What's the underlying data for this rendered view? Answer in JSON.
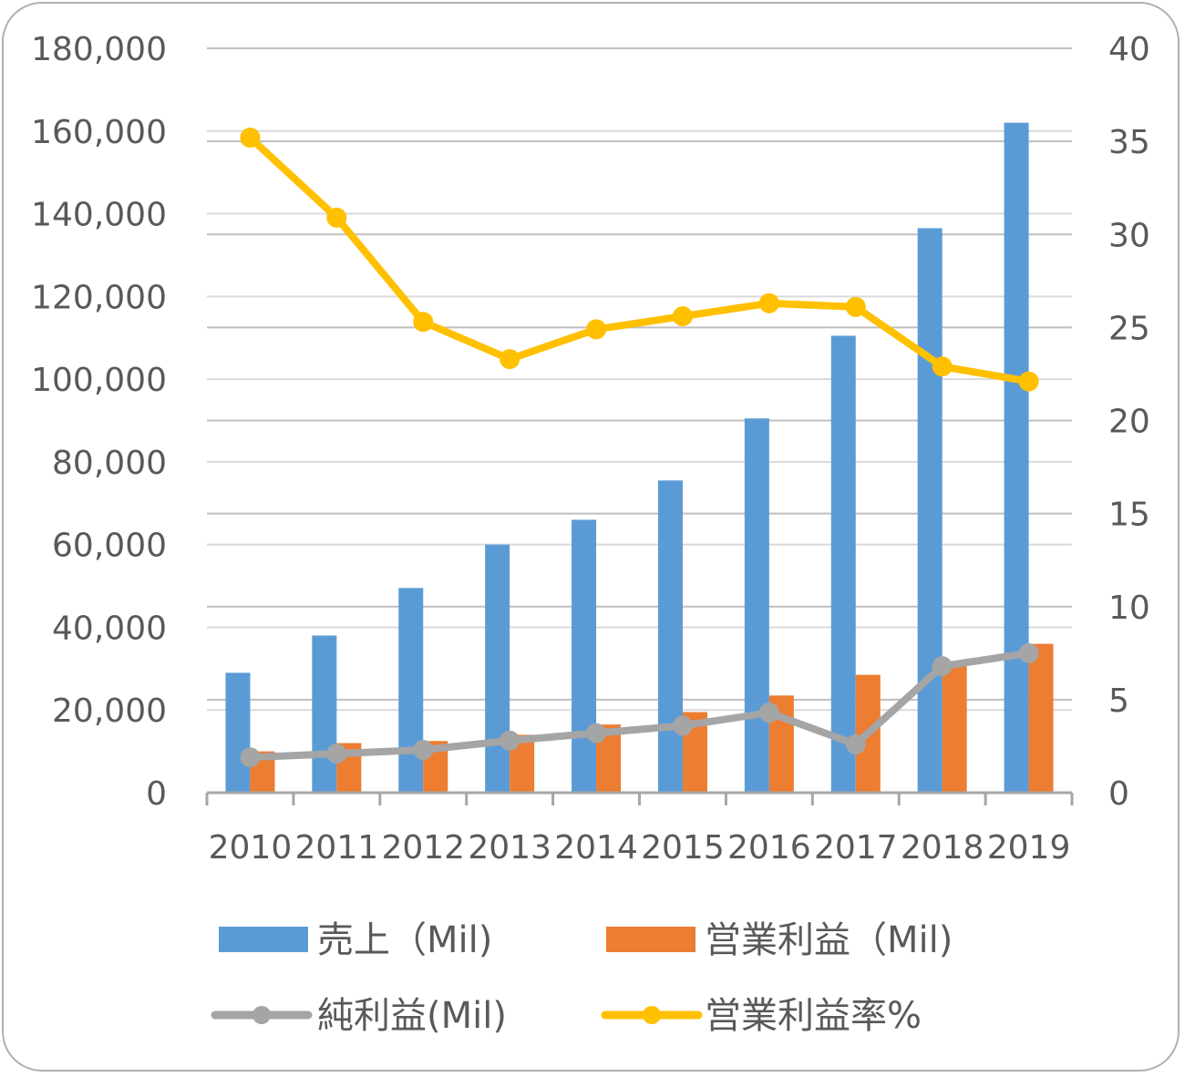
{
  "chart_data": {
    "type": "bar",
    "categories": [
      "2010",
      "2011",
      "2012",
      "2013",
      "2014",
      "2015",
      "2016",
      "2017",
      "2018",
      "2019"
    ],
    "series": [
      {
        "name": "売上（Mil)",
        "kind": "bar",
        "axis": "left",
        "color": "#5b9bd5",
        "values": [
          29000,
          38000,
          49500,
          60000,
          66000,
          75500,
          90500,
          110500,
          136500,
          162000
        ]
      },
      {
        "name": "営業利益（Mil)",
        "kind": "bar",
        "axis": "left",
        "color": "#ed7d31",
        "values": [
          10000,
          12000,
          12500,
          14000,
          16500,
          19500,
          23500,
          28500,
          31500,
          36000
        ]
      },
      {
        "name": "純利益(Mil)",
        "kind": "line",
        "axis": "right",
        "color": "#a5a5a5",
        "values": [
          1.9,
          2.1,
          2.3,
          2.8,
          3.2,
          3.6,
          4.3,
          2.6,
          6.8,
          7.5
        ]
      },
      {
        "name": "営業利益率%",
        "kind": "line",
        "axis": "right",
        "color": "#ffc000",
        "values": [
          35.2,
          30.9,
          25.3,
          23.3,
          24.9,
          25.6,
          26.3,
          26.1,
          22.9,
          22.1
        ]
      }
    ],
    "left_axis": {
      "min": 0,
      "max": 180000,
      "ticks": [
        "0",
        "20,000",
        "40,000",
        "60,000",
        "80,000",
        "100,000",
        "120,000",
        "140,000",
        "160,000",
        "180,000"
      ]
    },
    "right_axis": {
      "min": 0,
      "max": 40,
      "ticks": [
        "0",
        "5",
        "10",
        "15",
        "20",
        "25",
        "30",
        "35",
        "40"
      ]
    },
    "grid": true,
    "legend_position": "bottom"
  }
}
